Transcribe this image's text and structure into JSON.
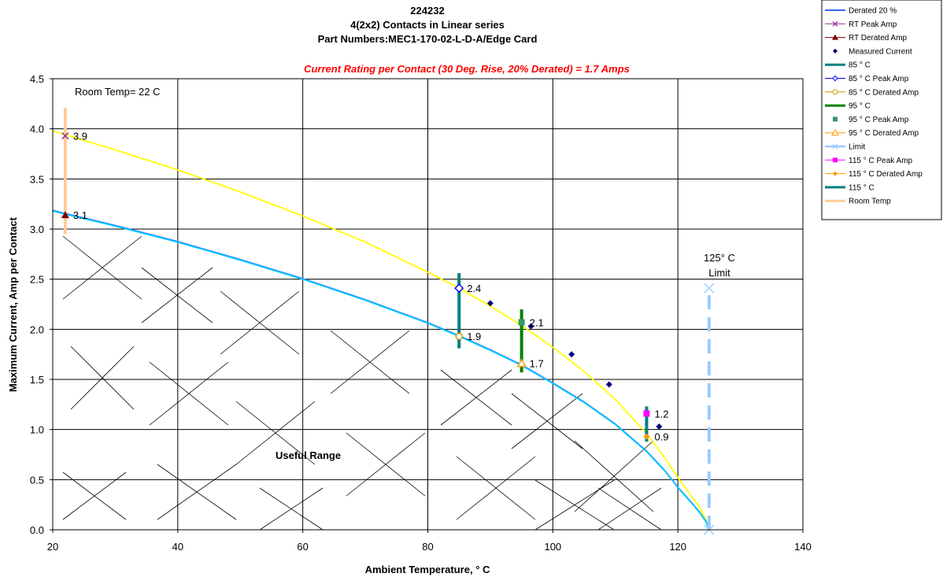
{
  "chart_data": {
    "type": "scatter",
    "title_lines": [
      "224232",
      "4(2x2) Contacts in Linear series",
      "Part Numbers:MEC1-170-02-L-D-A/Edge Card"
    ],
    "subtitle": "Current Rating per Contact (30 Deg. Rise, 20% Derated) = 1.7 Amps",
    "xlabel": "Ambient Temperature,  ° C",
    "ylabel": "Maximum Current, Amp per Contact",
    "xlim": [
      20,
      140
    ],
    "ylim": [
      0,
      4.5
    ],
    "x_ticks": [
      "20",
      "40",
      "60",
      "80",
      "100",
      "120",
      "140"
    ],
    "y_ticks": [
      "0.0",
      "0.5",
      "1.0",
      "1.5",
      "2.0",
      "2.5",
      "3.0",
      "3.5",
      "4.0",
      "4.5"
    ],
    "grid": true,
    "legend_position": "top-right",
    "annotations": {
      "room_temp": "Room Temp= 22 C",
      "limit_line1": "125° C",
      "limit_line2": "Limit",
      "useful_range": "Useful Range"
    },
    "curves": [
      {
        "name": "Peak Amp",
        "color": "#ffff00",
        "x": [
          20,
          30,
          40,
          50,
          60,
          70,
          80,
          85,
          90,
          95,
          100,
          105,
          110,
          115,
          118,
          120,
          122,
          123.5,
          124.5,
          125
        ],
        "y": [
          3.98,
          3.79,
          3.59,
          3.37,
          3.13,
          2.87,
          2.57,
          2.41,
          2.23,
          2.04,
          1.82,
          1.58,
          1.3,
          0.96,
          0.71,
          0.52,
          0.35,
          0.22,
          0.1,
          0.0
        ]
      },
      {
        "name": "Derated 20 %",
        "color": "#00ccff",
        "x": [
          20,
          30,
          40,
          50,
          60,
          70,
          80,
          85,
          90,
          95,
          100,
          105,
          110,
          115,
          118,
          120,
          122,
          123.5,
          124.5,
          125
        ],
        "y": [
          3.18,
          3.03,
          2.87,
          2.69,
          2.5,
          2.29,
          2.06,
          1.93,
          1.79,
          1.64,
          1.46,
          1.27,
          1.05,
          0.78,
          0.58,
          0.42,
          0.28,
          0.17,
          0.08,
          0.0
        ]
      }
    ],
    "series": [
      {
        "name": "Derated 20 %",
        "color": "#3366ff"
      },
      {
        "name": "RT Peak Amp",
        "color": "#993399",
        "points": [
          {
            "x": 22,
            "y": 3.93
          }
        ]
      },
      {
        "name": "RT Derated Amp",
        "color": "#800000",
        "points": [
          {
            "x": 22,
            "y": 3.14
          }
        ]
      },
      {
        "name": "Measured Current",
        "color": "#000080",
        "points": [
          {
            "x": 90,
            "y": 2.26
          },
          {
            "x": 96.5,
            "y": 2.03
          },
          {
            "x": 103,
            "y": 1.75
          },
          {
            "x": 109,
            "y": 1.45
          },
          {
            "x": 117,
            "y": 1.03
          }
        ]
      },
      {
        "name": "85 ° C",
        "color": "#008080"
      },
      {
        "name": "85  ° C Peak Amp",
        "color": "#0000ff",
        "points": [
          {
            "x": 85,
            "y": 2.41
          }
        ]
      },
      {
        "name": "85  ° C Derated Amp",
        "color": "#cc9900",
        "points": [
          {
            "x": 85,
            "y": 1.93
          }
        ]
      },
      {
        "name": "95  ° C",
        "color": "#008000"
      },
      {
        "name": "95  ° C Peak Amp",
        "color": "#339966",
        "points": [
          {
            "x": 95,
            "y": 2.07
          }
        ]
      },
      {
        "name": "95  ° C Derated Amp",
        "color": "#ff9900",
        "points": [
          {
            "x": 95,
            "y": 1.66
          }
        ]
      },
      {
        "name": "Limit",
        "color": "#99ccff",
        "points": [
          {
            "x": 125,
            "y": 2.41
          },
          {
            "x": 125,
            "y": 0.0
          }
        ]
      },
      {
        "name": "115  ° C Peak Amp",
        "color": "#ff00ff",
        "points": [
          {
            "x": 115,
            "y": 1.16
          }
        ]
      },
      {
        "name": "115  ° C Derated Amp",
        "color": "#ff9900",
        "points": [
          {
            "x": 115,
            "y": 0.93
          }
        ]
      },
      {
        "name": "115  ° C",
        "color": "#008080"
      },
      {
        "name": "Room Temp",
        "color": "#ffcc99"
      }
    ],
    "vertical_bars": [
      {
        "name": "Room Temp",
        "x": 22,
        "y0": 2.95,
        "y1": 4.21,
        "color": "#ffcc99"
      },
      {
        "name": "85 ° C",
        "x": 85,
        "y0": 1.81,
        "y1": 2.56,
        "color": "#008080"
      },
      {
        "name": "95  ° C",
        "x": 95,
        "y0": 1.57,
        "y1": 2.2,
        "color": "#008000"
      },
      {
        "name": "115  ° C",
        "x": 115,
        "y0": 0.88,
        "y1": 1.23,
        "color": "#008080"
      },
      {
        "name": "Limit",
        "x": 125,
        "y0": 0.0,
        "y1": 2.41,
        "color": "#99ccff",
        "dashed": true
      }
    ],
    "data_labels": [
      {
        "x": 22,
        "y": 3.93,
        "text": "3.9"
      },
      {
        "x": 22,
        "y": 3.14,
        "text": "3.1"
      },
      {
        "x": 85,
        "y": 2.41,
        "text": "2.4"
      },
      {
        "x": 85,
        "y": 1.93,
        "text": "1.9"
      },
      {
        "x": 95,
        "y": 2.07,
        "text": "2.1"
      },
      {
        "x": 95,
        "y": 1.66,
        "text": "1.7"
      },
      {
        "x": 115,
        "y": 1.16,
        "text": "1.2"
      },
      {
        "x": 115,
        "y": 0.93,
        "text": "0.9"
      }
    ],
    "legend": [
      {
        "label": "Derated 20 %",
        "color": "#3366ff",
        "marker": "line"
      },
      {
        "label": "RT Peak Amp",
        "color": "#993399",
        "marker": "x"
      },
      {
        "label": "RT Derated Amp",
        "color": "#800000",
        "marker": "triangle"
      },
      {
        "label": "Measured Current",
        "color": "#000080",
        "marker": "diamond-only"
      },
      {
        "label": "85 ° C",
        "color": "#008080",
        "marker": "thick"
      },
      {
        "label": "85  ° C Peak Amp",
        "color": "#0000ff",
        "marker": "diamond-open"
      },
      {
        "label": "85  ° C Derated Amp",
        "color": "#cc9900",
        "marker": "circle-open"
      },
      {
        "label": "95  ° C",
        "color": "#008000",
        "marker": "thick"
      },
      {
        "label": "95  ° C Peak Amp",
        "color": "#339966",
        "marker": "square-only"
      },
      {
        "label": "95  ° C Derated Amp",
        "color": "#ff9900",
        "marker": "triangle-open"
      },
      {
        "label": "Limit",
        "color": "#99ccff",
        "marker": "x-line"
      },
      {
        "label": "115  ° C Peak Amp",
        "color": "#ff00ff",
        "marker": "square"
      },
      {
        "label": "115  ° C Derated Amp",
        "color": "#ff9900",
        "marker": "diamond"
      },
      {
        "label": "115  ° C",
        "color": "#008080",
        "marker": "thick"
      },
      {
        "label": "Room Temp",
        "color": "#ffcc99",
        "marker": "thick"
      }
    ]
  }
}
